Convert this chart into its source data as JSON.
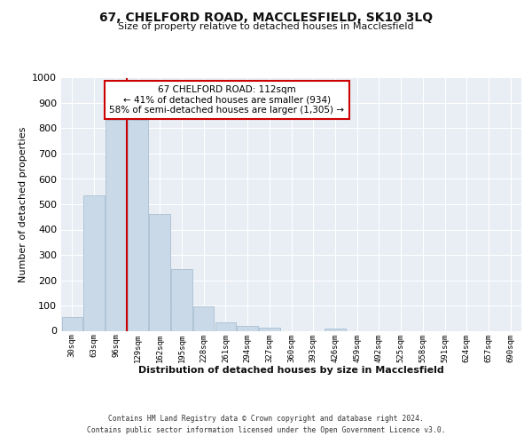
{
  "title": "67, CHELFORD ROAD, MACCLESFIELD, SK10 3LQ",
  "subtitle": "Size of property relative to detached houses in Macclesfield",
  "xlabel": "Distribution of detached houses by size in Macclesfield",
  "ylabel": "Number of detached properties",
  "bar_labels": [
    "30sqm",
    "63sqm",
    "96sqm",
    "129sqm",
    "162sqm",
    "195sqm",
    "228sqm",
    "261sqm",
    "294sqm",
    "327sqm",
    "360sqm",
    "393sqm",
    "426sqm",
    "459sqm",
    "492sqm",
    "525sqm",
    "558sqm",
    "591sqm",
    "624sqm",
    "657sqm",
    "690sqm"
  ],
  "bar_values": [
    55,
    535,
    835,
    835,
    460,
    245,
    97,
    35,
    20,
    12,
    0,
    0,
    10,
    0,
    0,
    0,
    0,
    0,
    0,
    0,
    0
  ],
  "bar_color": "#c9d9e8",
  "bar_edge_color": "#a0b8cc",
  "property_line_x": 2.5,
  "annotation_text": "67 CHELFORD ROAD: 112sqm\n← 41% of detached houses are smaller (934)\n58% of semi-detached houses are larger (1,305) →",
  "annotation_box_color": "#ffffff",
  "annotation_box_edge_color": "#cc0000",
  "vline_color": "#cc0000",
  "ylim": [
    0,
    1000
  ],
  "fig_bg_color": "#ffffff",
  "axes_bg_color": "#e8eef4",
  "grid_color": "#ffffff",
  "footer_line1": "Contains HM Land Registry data © Crown copyright and database right 2024.",
  "footer_line2": "Contains public sector information licensed under the Open Government Licence v3.0."
}
